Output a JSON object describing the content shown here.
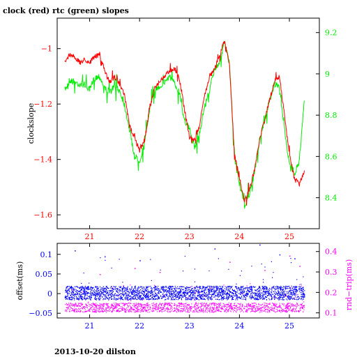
{
  "page": {
    "title": "clock (red) rtc (green) slopes",
    "footer": "2013-10-20 dilston"
  },
  "colors": {
    "clock": "#ff0000",
    "rtc": "#00ee00",
    "offset": "#0000ff",
    "rndtrip": "#ff00ff",
    "axis": "#000000"
  },
  "chart_data": [
    {
      "type": "line",
      "title": "clock (red) rtc (green) slopes",
      "xlabel": "",
      "ylabel": "clockslope",
      "y2label": "",
      "xlim": [
        20.35,
        25.6
      ],
      "ylim": [
        -1.65,
        -0.89
      ],
      "y2lim": [
        8.25,
        9.27
      ],
      "x_ticks": [
        21,
        22,
        23,
        24,
        25
      ],
      "y_ticks": [
        -1.6,
        -1.4,
        -1.2,
        -1.0
      ],
      "y_tick_labels": [
        "−1.6",
        "−1.4",
        "−1.2",
        "−1"
      ],
      "y2_ticks": [
        8.4,
        8.6,
        8.8,
        9.0,
        9.2
      ],
      "y2_tick_labels": [
        "8.4",
        "8.6",
        "8.8",
        "9",
        "9.2"
      ],
      "grid": false,
      "series": [
        {
          "name": "clock",
          "axis": "left",
          "x": [
            20.5,
            20.6,
            20.7,
            20.8,
            20.9,
            21.0,
            21.1,
            21.2,
            21.3,
            21.4,
            21.5,
            21.6,
            21.7,
            21.8,
            21.9,
            22.0,
            22.1,
            22.2,
            22.3,
            22.4,
            22.5,
            22.6,
            22.7,
            22.8,
            22.9,
            23.0,
            23.1,
            23.2,
            23.3,
            23.4,
            23.5,
            23.6,
            23.7,
            23.8,
            23.9,
            24.0,
            24.1,
            24.2,
            24.3,
            24.4,
            24.5,
            24.6,
            24.7,
            24.8,
            24.9,
            25.0,
            25.1,
            25.2,
            25.3
          ],
          "values": [
            -1.05,
            -1.02,
            -1.03,
            -1.05,
            -1.04,
            -1.05,
            -1.03,
            -1.02,
            -1.08,
            -1.12,
            -1.1,
            -1.13,
            -1.17,
            -1.28,
            -1.32,
            -1.37,
            -1.33,
            -1.22,
            -1.14,
            -1.12,
            -1.1,
            -1.08,
            -1.07,
            -1.11,
            -1.22,
            -1.32,
            -1.33,
            -1.28,
            -1.17,
            -1.1,
            -1.07,
            -1.03,
            -0.97,
            -1.06,
            -1.38,
            -1.47,
            -1.55,
            -1.51,
            -1.44,
            -1.33,
            -1.26,
            -1.19,
            -1.12,
            -1.1,
            -1.24,
            -1.38,
            -1.47,
            -1.49,
            -1.44
          ]
        },
        {
          "name": "rtc",
          "axis": "right",
          "x": [
            20.5,
            20.6,
            20.7,
            20.8,
            20.9,
            21.0,
            21.1,
            21.2,
            21.3,
            21.4,
            21.5,
            21.6,
            21.7,
            21.8,
            21.9,
            22.0,
            22.1,
            22.2,
            22.3,
            22.4,
            22.5,
            22.6,
            22.7,
            22.8,
            22.9,
            23.0,
            23.1,
            23.2,
            23.3,
            23.4,
            23.5,
            23.6,
            23.7,
            23.8,
            23.9,
            24.0,
            24.1,
            24.2,
            24.3,
            24.4,
            24.5,
            24.6,
            24.7,
            24.8,
            24.9,
            25.0,
            25.1,
            25.2,
            25.3
          ],
          "values": [
            8.92,
            8.97,
            8.96,
            8.95,
            8.95,
            8.92,
            8.98,
            8.99,
            8.93,
            8.91,
            8.94,
            8.92,
            8.85,
            8.73,
            8.6,
            8.58,
            8.66,
            8.83,
            8.92,
            8.94,
            8.96,
            8.99,
            8.95,
            8.91,
            8.78,
            8.73,
            8.64,
            8.71,
            8.84,
            8.92,
            9.02,
            9.06,
            9.15,
            9.05,
            8.6,
            8.47,
            8.36,
            8.42,
            8.52,
            8.68,
            8.77,
            8.87,
            8.95,
            8.93,
            8.74,
            8.56,
            8.52,
            8.58,
            8.87
          ]
        }
      ]
    },
    {
      "type": "scatter",
      "xlabel": "",
      "ylabel": "offset(ms)",
      "y2label": "rnd−trip(ms)",
      "xlim": [
        20.35,
        25.6
      ],
      "ylim": [
        -0.062,
        0.128
      ],
      "y2lim": [
        0.075,
        0.44
      ],
      "x_ticks": [
        21,
        22,
        23,
        24,
        25
      ],
      "y_ticks": [
        -0.05,
        0.0,
        0.05,
        0.1
      ],
      "y_tick_labels": [
        "−0.05",
        "0",
        "0.05",
        "0.1"
      ],
      "y2_ticks": [
        0.1,
        0.2,
        0.3,
        0.4
      ],
      "y2_tick_labels": [
        "0.1",
        "0.2",
        "0.3",
        "0.4"
      ],
      "grid": false,
      "series": [
        {
          "name": "offset",
          "axis": "left",
          "x_range": [
            20.5,
            25.3
          ],
          "band": [
            -0.015,
            0.02
          ],
          "outliers": [
            [
              20.7,
              0.11
            ],
            [
              21.3,
              0.095
            ],
            [
              22.0,
              0.085
            ],
            [
              23.5,
              0.115
            ],
            [
              24.4,
              0.125
            ],
            [
              24.8,
              0.1
            ],
            [
              25.1,
              0.09
            ]
          ]
        },
        {
          "name": "rndtrip",
          "axis": "right",
          "x_range": [
            20.5,
            25.3
          ],
          "band": [
            0.105,
            0.15
          ],
          "outliers": [
            [
              21.2,
              0.29
            ],
            [
              21.9,
              0.32
            ],
            [
              22.4,
              0.3
            ],
            [
              23.8,
              0.35
            ],
            [
              24.5,
              0.31
            ],
            [
              25.0,
              0.38
            ],
            [
              25.2,
              0.33
            ]
          ]
        }
      ]
    }
  ]
}
